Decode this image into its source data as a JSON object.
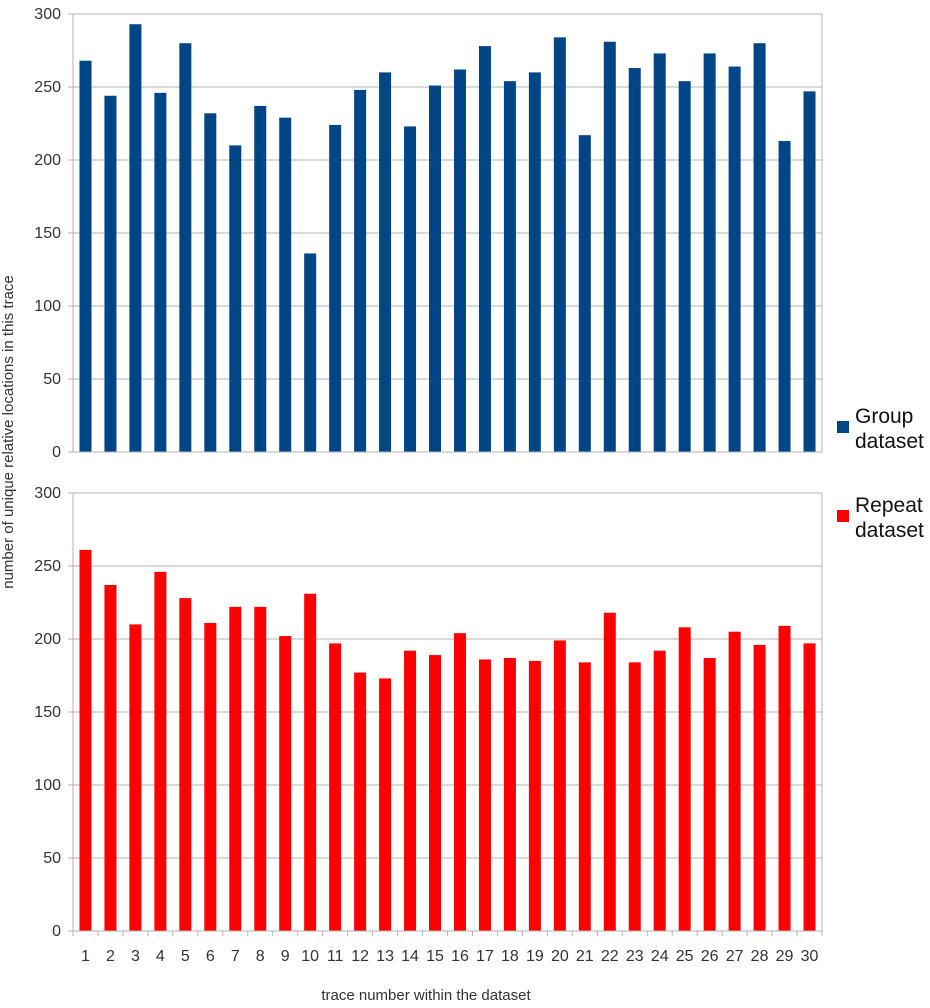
{
  "chart_data": {
    "type": "bar",
    "xlabel": "trace number within the dataset",
    "ylabel": "number of unique relative locations in this trace",
    "categories": [
      "1",
      "2",
      "3",
      "4",
      "5",
      "6",
      "7",
      "8",
      "9",
      "10",
      "11",
      "12",
      "13",
      "14",
      "15",
      "16",
      "17",
      "18",
      "19",
      "20",
      "21",
      "22",
      "23",
      "24",
      "25",
      "26",
      "27",
      "28",
      "29",
      "30"
    ],
    "ylim": [
      0,
      300
    ],
    "yticks": [
      "0",
      "50",
      "100",
      "150",
      "200",
      "250",
      "300"
    ],
    "grid": true,
    "legend_placement": "right",
    "series": [
      {
        "name": "Group dataset",
        "legend_lines": [
          "Group",
          "dataset"
        ],
        "color": "#004586",
        "values": [
          268,
          244,
          293,
          246,
          280,
          232,
          210,
          237,
          229,
          136,
          224,
          248,
          260,
          223,
          251,
          262,
          278,
          254,
          260,
          284,
          217,
          281,
          263,
          273,
          254,
          273,
          264,
          280,
          213,
          247
        ]
      },
      {
        "name": "Repeat dataset",
        "legend_lines": [
          "Repeat",
          "dataset"
        ],
        "color": "#ff0000",
        "values": [
          261,
          237,
          210,
          246,
          228,
          211,
          222,
          222,
          202,
          231,
          197,
          177,
          173,
          192,
          189,
          204,
          186,
          187,
          185,
          199,
          184,
          218,
          184,
          192,
          208,
          187,
          205,
          196,
          209,
          197
        ]
      }
    ]
  }
}
